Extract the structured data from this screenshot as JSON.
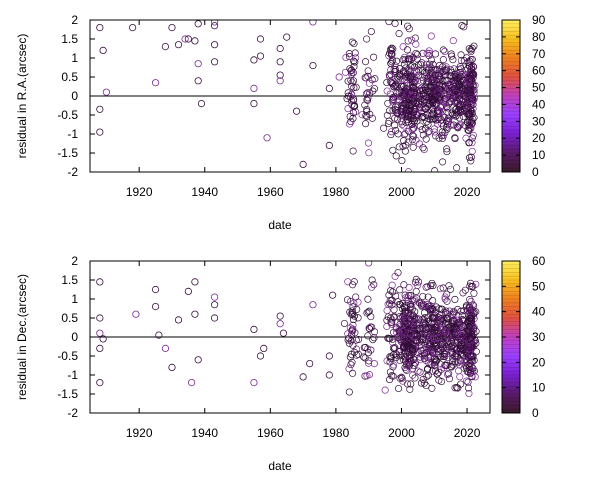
{
  "chart_data": [
    {
      "type": "scatter",
      "xlabel": "date",
      "ylabel": "residual in R.A.(arcsec)",
      "xlim": [
        1905,
        2027
      ],
      "ylim": [
        -2,
        2
      ],
      "x_ticks": [
        1920,
        1940,
        1960,
        1980,
        2000,
        2020
      ],
      "y_ticks": [
        -2,
        -1.5,
        -1,
        -0.5,
        0,
        0.5,
        1,
        1.5,
        2
      ],
      "zero_line": true,
      "marker": "open-circle",
      "colorbar": {
        "min": 0,
        "max": 90,
        "ticks": [
          0,
          10,
          20,
          30,
          40,
          50,
          60,
          70,
          80,
          90
        ]
      },
      "points": [
        {
          "x": 1908,
          "y": 1.8
        },
        {
          "x": 1909,
          "y": 1.2
        },
        {
          "x": 1910,
          "y": 0.1
        },
        {
          "x": 1908,
          "y": -0.35
        },
        {
          "x": 1908,
          "y": -0.95
        },
        {
          "x": 1918,
          "y": 1.8
        },
        {
          "x": 1925,
          "y": 0.35
        },
        {
          "x": 1928,
          "y": 1.3
        },
        {
          "x": 1930,
          "y": 1.8
        },
        {
          "x": 1932,
          "y": 1.35
        },
        {
          "x": 1934,
          "y": 1.5
        },
        {
          "x": 1935,
          "y": 1.5
        },
        {
          "x": 1937,
          "y": 1.45
        },
        {
          "x": 1938,
          "y": 1.9
        },
        {
          "x": 1938,
          "y": 0.85
        },
        {
          "x": 1938,
          "y": 0.4
        },
        {
          "x": 1939,
          "y": -0.2
        },
        {
          "x": 1943,
          "y": 1.85
        },
        {
          "x": 1943,
          "y": 1.95
        },
        {
          "x": 1943,
          "y": 1.35
        },
        {
          "x": 1943,
          "y": 0.9
        },
        {
          "x": 1955,
          "y": 0.95
        },
        {
          "x": 1955,
          "y": 0.2
        },
        {
          "x": 1955,
          "y": -0.2
        },
        {
          "x": 1957,
          "y": 1.5
        },
        {
          "x": 1957,
          "y": 1.05
        },
        {
          "x": 1959,
          "y": -1.1
        },
        {
          "x": 1963,
          "y": 1.25
        },
        {
          "x": 1963,
          "y": 0.9
        },
        {
          "x": 1963,
          "y": 0.55
        },
        {
          "x": 1963,
          "y": 0.4
        },
        {
          "x": 1965,
          "y": 1.55
        },
        {
          "x": 1968,
          "y": -0.4
        },
        {
          "x": 1970,
          "y": -1.8
        },
        {
          "x": 1973,
          "y": 1.95
        },
        {
          "x": 1973,
          "y": 0.8
        },
        {
          "x": 1978,
          "y": 0.2
        },
        {
          "x": 1978,
          "y": -1.3
        },
        {
          "x": 1981,
          "y": 0.5
        }
      ],
      "clusters": [
        {
          "x_center": 1985,
          "x_spread": 0.8,
          "y_spread": 0.9,
          "count": 45,
          "y_max": 1.9
        },
        {
          "x_center": 1990,
          "x_spread": 1.0,
          "y_spread": 0.6,
          "count": 30,
          "y_max": 1.8
        },
        {
          "x_center": 1997,
          "x_spread": 0.7,
          "y_spread": 0.9,
          "count": 40,
          "y_max": 2.0
        },
        {
          "x_center": 2002,
          "x_spread": 2.2,
          "y_spread": 0.55,
          "count": 260,
          "y_max": 2.0
        },
        {
          "x_center": 2010,
          "x_spread": 2.5,
          "y_spread": 0.5,
          "count": 240,
          "y_max": 2.0
        },
        {
          "x_center": 2017,
          "x_spread": 2.0,
          "y_spread": 0.4,
          "count": 160,
          "y_max": 1.9
        },
        {
          "x_center": 2021,
          "x_spread": 0.7,
          "y_spread": 0.55,
          "count": 150,
          "y_max": 1.8
        }
      ]
    },
    {
      "type": "scatter",
      "xlabel": "date",
      "ylabel": "residual in Dec.(arcsec)",
      "xlim": [
        1905,
        2027
      ],
      "ylim": [
        -2,
        2
      ],
      "x_ticks": [
        1920,
        1940,
        1960,
        1980,
        2000,
        2020
      ],
      "y_ticks": [
        -2,
        -1.5,
        -1,
        -0.5,
        0,
        0.5,
        1,
        1.5,
        2
      ],
      "zero_line": true,
      "marker": "open-circle",
      "colorbar": {
        "min": 0,
        "max": 60,
        "ticks": [
          0,
          10,
          20,
          30,
          40,
          50,
          60
        ]
      },
      "points": [
        {
          "x": 1908,
          "y": 1.45
        },
        {
          "x": 1908,
          "y": 0.5
        },
        {
          "x": 1908,
          "y": 0.1
        },
        {
          "x": 1908,
          "y": -0.3
        },
        {
          "x": 1908,
          "y": -1.2
        },
        {
          "x": 1909,
          "y": -0.05
        },
        {
          "x": 1919,
          "y": 0.6
        },
        {
          "x": 1925,
          "y": 1.25
        },
        {
          "x": 1925,
          "y": 0.8
        },
        {
          "x": 1926,
          "y": 0.05
        },
        {
          "x": 1928,
          "y": -0.3
        },
        {
          "x": 1930,
          "y": -0.8
        },
        {
          "x": 1932,
          "y": 0.45
        },
        {
          "x": 1935,
          "y": 1.2
        },
        {
          "x": 1936,
          "y": -1.2
        },
        {
          "x": 1937,
          "y": 1.45
        },
        {
          "x": 1937,
          "y": 0.6
        },
        {
          "x": 1938,
          "y": -0.6
        },
        {
          "x": 1943,
          "y": 1.05
        },
        {
          "x": 1943,
          "y": 0.85
        },
        {
          "x": 1943,
          "y": 0.5
        },
        {
          "x": 1955,
          "y": 0.2
        },
        {
          "x": 1955,
          "y": -1.2
        },
        {
          "x": 1957,
          "y": -0.5
        },
        {
          "x": 1958,
          "y": -0.3
        },
        {
          "x": 1963,
          "y": 0.55
        },
        {
          "x": 1963,
          "y": 0.35
        },
        {
          "x": 1964,
          "y": 0.1
        },
        {
          "x": 1970,
          "y": -1.05
        },
        {
          "x": 1972,
          "y": -0.7
        },
        {
          "x": 1973,
          "y": 0.85
        },
        {
          "x": 1978,
          "y": -0.5
        },
        {
          "x": 1978,
          "y": -1.0
        },
        {
          "x": 1979,
          "y": 1.1
        },
        {
          "x": 1990,
          "y": 1.95
        }
      ],
      "clusters": [
        {
          "x_center": 1985,
          "x_spread": 0.8,
          "y_spread": 0.9,
          "count": 45,
          "y_max": 1.5
        },
        {
          "x_center": 1990,
          "x_spread": 1.0,
          "y_spread": 0.6,
          "count": 30,
          "y_max": 1.5
        },
        {
          "x_center": 1997,
          "x_spread": 0.7,
          "y_spread": 0.8,
          "count": 40,
          "y_max": 1.7
        },
        {
          "x_center": 2002,
          "x_spread": 2.2,
          "y_spread": 0.5,
          "count": 260,
          "y_max": 1.9
        },
        {
          "x_center": 2010,
          "x_spread": 2.5,
          "y_spread": 0.5,
          "count": 240,
          "y_max": 1.5
        },
        {
          "x_center": 2017,
          "x_spread": 2.0,
          "y_spread": 0.4,
          "count": 160,
          "y_max": 1.4
        },
        {
          "x_center": 2021,
          "x_spread": 0.7,
          "y_spread": 0.55,
          "count": 150,
          "y_max": 1.5
        }
      ]
    }
  ],
  "colors": {
    "marker_stroke": "#3a1040",
    "marker_stroke_alt": "#7a2a90",
    "axis": "#000000",
    "colormap": [
      "#3a1a2a",
      "#5a1a6a",
      "#7a20d0",
      "#9a40ff",
      "#c040c0",
      "#e05040",
      "#f08020",
      "#f8c020",
      "#fff060"
    ]
  }
}
